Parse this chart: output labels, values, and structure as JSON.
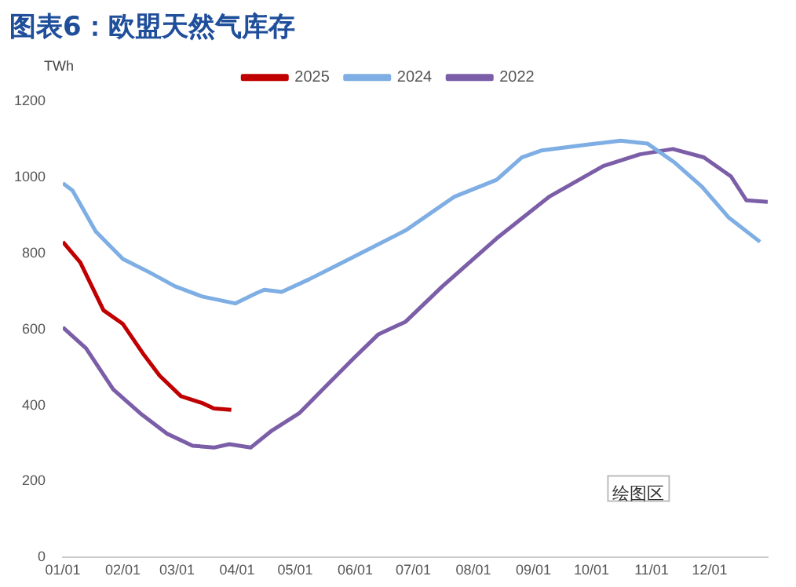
{
  "chart_data": {
    "type": "line",
    "title": "图表6：欧盟天然气库存",
    "ylabel": "TWh",
    "xlim": [
      "--01-01",
      "--12-31"
    ],
    "xticks": [
      {
        "value": "--01-01",
        "label": "01/01"
      },
      {
        "value": "--02-01",
        "label": "02/01"
      },
      {
        "value": "--03-01",
        "label": "03/01"
      },
      {
        "value": "--04-01",
        "label": "04/01"
      },
      {
        "value": "--05-01",
        "label": "05/01"
      },
      {
        "value": "--06-01",
        "label": "06/01"
      },
      {
        "value": "--07-01",
        "label": "07/01"
      },
      {
        "value": "--08-01",
        "label": "08/01"
      },
      {
        "value": "--09-01",
        "label": "09/01"
      },
      {
        "value": "--10-01",
        "label": "10/01"
      },
      {
        "value": "--11-01",
        "label": "11/01"
      },
      {
        "value": "--12-01",
        "label": "12/01"
      }
    ],
    "ylim": [
      0,
      1200
    ],
    "yticks": [
      0,
      200,
      400,
      600,
      800,
      1000,
      1200
    ],
    "legend": "top",
    "grid": false,
    "marker": "none",
    "line_style": "solid",
    "annotations": [
      "绘图区"
    ],
    "series": [
      {
        "name": "2025",
        "color": "#c00000",
        "x": [
          "--01-01",
          "--01-10",
          "--01-22",
          "--02-01",
          "--02-12",
          "--02-20",
          "--03-03",
          "--03-14",
          "--03-20",
          "--03-29"
        ],
        "values": [
          830,
          776,
          650,
          614,
          532,
          478,
          424,
          406,
          392,
          388
        ]
      },
      {
        "name": "2024",
        "color": "#7eaee3",
        "x": [
          "--01-01",
          "--01-06",
          "--01-18",
          "--02-01",
          "--02-15",
          "--02-28",
          "--03-14",
          "--03-31",
          "--04-11",
          "--04-15",
          "--04-24",
          "--05-08",
          "--05-22",
          "--06-05",
          "--06-27",
          "--07-22",
          "--08-13",
          "--08-26",
          "--09-05",
          "--10-03",
          "--10-16",
          "--10-30",
          "--11-13",
          "--11-27",
          "--12-11",
          "--12-27"
        ],
        "values": [
          984,
          965,
          857,
          785,
          749,
          713,
          686,
          668,
          695,
          704,
          698,
          731,
          767,
          803,
          860,
          948,
          993,
          1052,
          1070,
          1088,
          1096,
          1088,
          1038,
          975,
          893,
          830
        ]
      },
      {
        "name": "2022",
        "color": "#7b5ea7",
        "x": [
          "--01-01",
          "--01-13",
          "--01-27",
          "--02-10",
          "--02-24",
          "--03-09",
          "--03-20",
          "--03-28",
          "--04-08",
          "--04-19",
          "--05-03",
          "--05-17",
          "--05-31",
          "--06-13",
          "--06-27",
          "--07-16",
          "--08-13",
          "--09-09",
          "--10-07",
          "--10-26",
          "--11-12",
          "--11-28",
          "--12-12",
          "--12-20",
          "--12-31"
        ],
        "values": [
          605,
          550,
          442,
          379,
          325,
          294,
          289,
          298,
          289,
          334,
          379,
          451,
          523,
          587,
          620,
          713,
          839,
          948,
          1029,
          1060,
          1074,
          1052,
          1002,
          939,
          935
        ]
      }
    ]
  }
}
